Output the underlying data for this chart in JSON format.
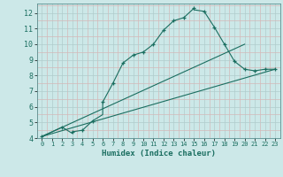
{
  "title": "",
  "xlabel": "Humidex (Indice chaleur)",
  "ylabel": "",
  "background_color": "#cce8e8",
  "grid_major_color": "#b0cccc",
  "grid_minor_color": "#d4b8b8",
  "line_color": "#1a6e60",
  "xlim": [
    -0.5,
    23.5
  ],
  "ylim": [
    4,
    12.6
  ],
  "xticks": [
    0,
    1,
    2,
    3,
    4,
    5,
    6,
    7,
    8,
    9,
    10,
    11,
    12,
    13,
    14,
    15,
    16,
    17,
    18,
    19,
    20,
    21,
    22,
    23
  ],
  "yticks": [
    4,
    5,
    6,
    7,
    8,
    9,
    10,
    11,
    12
  ],
  "line1_x": [
    0,
    2,
    3,
    3,
    4,
    5,
    6,
    6,
    7,
    8,
    9,
    10,
    11,
    12,
    13,
    14,
    15,
    15,
    16,
    17,
    18,
    19,
    20,
    21,
    22,
    23
  ],
  "line1_y": [
    4.1,
    4.7,
    4.3,
    4.4,
    4.5,
    5.1,
    5.5,
    6.3,
    7.5,
    8.8,
    9.3,
    9.5,
    10.0,
    10.9,
    11.5,
    11.7,
    12.3,
    12.2,
    12.1,
    11.1,
    10.0,
    8.9,
    8.4,
    8.3,
    8.4,
    8.4
  ],
  "line2_x": [
    0,
    23
  ],
  "line2_y": [
    4.1,
    8.4
  ],
  "line3_x": [
    0,
    20
  ],
  "line3_y": [
    4.1,
    10.0
  ],
  "markers_x": [
    0,
    2,
    3,
    4,
    5,
    6,
    7,
    8,
    9,
    10,
    11,
    12,
    13,
    14,
    15,
    16,
    17,
    18,
    19,
    20,
    21,
    22,
    23
  ],
  "markers_y": [
    4.1,
    4.7,
    4.4,
    4.5,
    5.1,
    6.3,
    7.5,
    8.8,
    9.3,
    9.5,
    10.0,
    10.9,
    11.5,
    11.7,
    12.3,
    12.1,
    11.1,
    10.0,
    8.9,
    8.4,
    8.3,
    8.4,
    8.4
  ]
}
